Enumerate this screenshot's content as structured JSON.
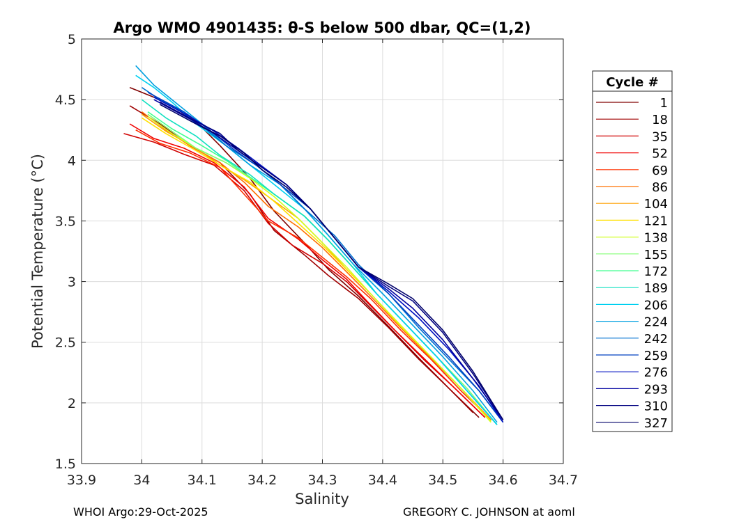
{
  "chart_data": {
    "type": "line",
    "title": "Argo WMO 4901435: θ-S below 500 dbar,  QC=(1,2)",
    "xlabel": "Salinity",
    "ylabel": "Potential Temperature (°C)",
    "xlim": [
      33.9,
      34.7
    ],
    "ylim": [
      1.5,
      5
    ],
    "xticks": [
      "33.9",
      "34",
      "34.1",
      "34.2",
      "34.3",
      "34.4",
      "34.5",
      "34.6",
      "34.7"
    ],
    "yticks": [
      "1.5",
      "2",
      "2.5",
      "3",
      "3.5",
      "4",
      "4.5",
      "5"
    ],
    "grid": true,
    "legend_title": "Cycle #",
    "legend_position": "right",
    "series": [
      {
        "name": "1",
        "color": "#800000",
        "x": [
          33.98,
          34.04,
          34.09,
          34.13,
          34.18,
          34.22,
          34.27,
          34.31,
          34.36,
          34.41,
          34.46,
          34.51,
          34.56
        ],
        "y": [
          4.6,
          4.48,
          4.32,
          4.12,
          3.85,
          3.58,
          3.32,
          3.1,
          2.88,
          2.63,
          2.37,
          2.12,
          1.88
        ]
      },
      {
        "name": "18",
        "color": "#a00000",
        "x": [
          33.98,
          34.03,
          34.08,
          34.13,
          34.18,
          34.22,
          34.27,
          34.31,
          34.36,
          34.41,
          34.46,
          34.51,
          34.55
        ],
        "y": [
          4.45,
          4.3,
          4.12,
          3.98,
          3.72,
          3.42,
          3.22,
          3.05,
          2.86,
          2.62,
          2.36,
          2.12,
          1.92
        ]
      },
      {
        "name": "35",
        "color": "#d00000",
        "x": [
          33.97,
          34.02,
          34.07,
          34.12,
          34.17,
          34.21,
          34.25,
          34.3,
          34.34,
          34.37,
          34.42,
          34.47,
          34.52,
          34.57
        ],
        "y": [
          4.22,
          4.15,
          4.05,
          3.96,
          3.75,
          3.48,
          3.3,
          3.15,
          3.0,
          2.85,
          2.6,
          2.35,
          2.12,
          1.88
        ]
      },
      {
        "name": "52",
        "color": "#f00000",
        "x": [
          33.98,
          34.02,
          34.07,
          34.12,
          34.17,
          34.21,
          34.26,
          34.3,
          34.34,
          34.37,
          34.42,
          34.47,
          34.52,
          34.57
        ],
        "y": [
          4.3,
          4.18,
          4.1,
          3.98,
          3.78,
          3.52,
          3.35,
          3.18,
          3.02,
          2.86,
          2.6,
          2.36,
          2.12,
          1.88
        ]
      },
      {
        "name": "69",
        "color": "#ff3000",
        "x": [
          33.99,
          34.03,
          34.08,
          34.13,
          34.17,
          34.21,
          34.26,
          34.3,
          34.34,
          34.38,
          34.43,
          34.48,
          34.53,
          34.58
        ],
        "y": [
          4.25,
          4.14,
          4.06,
          3.94,
          3.72,
          3.5,
          3.36,
          3.2,
          3.04,
          2.86,
          2.6,
          2.36,
          2.1,
          1.86
        ]
      },
      {
        "name": "86",
        "color": "#ff7000",
        "x": [
          34.0,
          34.04,
          34.08,
          34.13,
          34.17,
          34.21,
          34.26,
          34.3,
          34.34,
          34.38,
          34.43,
          34.48,
          34.53,
          34.58
        ],
        "y": [
          4.4,
          4.25,
          4.12,
          3.98,
          3.82,
          3.62,
          3.45,
          3.28,
          3.08,
          2.88,
          2.62,
          2.37,
          2.12,
          1.86
        ]
      },
      {
        "name": "104",
        "color": "#ffa000",
        "x": [
          34.0,
          34.04,
          34.09,
          34.13,
          34.17,
          34.21,
          34.26,
          34.3,
          34.34,
          34.38,
          34.43,
          34.48,
          34.53,
          34.58
        ],
        "y": [
          4.38,
          4.24,
          4.1,
          3.96,
          3.84,
          3.7,
          3.52,
          3.32,
          3.1,
          2.9,
          2.63,
          2.38,
          2.12,
          1.85
        ]
      },
      {
        "name": "121",
        "color": "#ffe000",
        "x": [
          34.0,
          34.04,
          34.09,
          34.13,
          34.18,
          34.22,
          34.26,
          34.3,
          34.34,
          34.38,
          34.43,
          34.48,
          34.53,
          34.58
        ],
        "y": [
          4.35,
          4.22,
          4.08,
          3.96,
          3.82,
          3.66,
          3.48,
          3.3,
          3.1,
          2.9,
          2.63,
          2.38,
          2.12,
          1.85
        ]
      },
      {
        "name": "138",
        "color": "#d0ff20",
        "x": [
          34.01,
          34.05,
          34.09,
          34.14,
          34.18,
          34.22,
          34.26,
          34.3,
          34.34,
          34.38,
          34.43,
          34.48,
          34.53,
          34.58
        ],
        "y": [
          4.36,
          4.22,
          4.1,
          3.98,
          3.85,
          3.7,
          3.52,
          3.32,
          3.12,
          2.9,
          2.64,
          2.38,
          2.12,
          1.84
        ]
      },
      {
        "name": "155",
        "color": "#80ff70",
        "x": [
          34.01,
          34.05,
          34.09,
          34.14,
          34.18,
          34.22,
          34.27,
          34.31,
          34.35,
          34.39,
          34.44,
          34.49,
          34.54,
          34.59
        ],
        "y": [
          4.38,
          4.24,
          4.1,
          3.98,
          3.86,
          3.72,
          3.54,
          3.34,
          3.12,
          2.9,
          2.64,
          2.38,
          2.12,
          1.82
        ]
      },
      {
        "name": "172",
        "color": "#40ff90",
        "x": [
          34.01,
          34.05,
          34.1,
          34.14,
          34.18,
          34.22,
          34.27,
          34.31,
          34.35,
          34.39,
          34.44,
          34.49,
          34.54,
          34.59
        ],
        "y": [
          4.4,
          4.26,
          4.12,
          4.0,
          3.86,
          3.72,
          3.54,
          3.34,
          3.12,
          2.9,
          2.64,
          2.38,
          2.1,
          1.82
        ]
      },
      {
        "name": "189",
        "color": "#10e0c0",
        "x": [
          34.0,
          34.04,
          34.09,
          34.13,
          34.18,
          34.22,
          34.27,
          34.31,
          34.35,
          34.39,
          34.44,
          34.49,
          34.54,
          34.59
        ],
        "y": [
          4.5,
          4.35,
          4.2,
          4.04,
          3.88,
          3.72,
          3.54,
          3.34,
          3.12,
          2.9,
          2.64,
          2.38,
          2.1,
          1.82
        ]
      },
      {
        "name": "206",
        "color": "#00d0f0",
        "x": [
          33.99,
          34.02,
          34.05,
          34.09,
          34.14,
          34.18,
          34.22,
          34.27,
          34.31,
          34.35,
          34.39,
          34.44,
          34.49,
          34.54,
          34.59
        ],
        "y": [
          4.7,
          4.6,
          4.48,
          4.3,
          4.12,
          3.96,
          3.8,
          3.6,
          3.38,
          3.15,
          2.9,
          2.64,
          2.38,
          2.1,
          1.82
        ]
      },
      {
        "name": "224",
        "color": "#00a0e0",
        "x": [
          33.99,
          34.02,
          34.06,
          34.1,
          34.14,
          34.18,
          34.23,
          34.27,
          34.31,
          34.35,
          34.4,
          34.45,
          34.5,
          34.55,
          34.59
        ],
        "y": [
          4.78,
          4.62,
          4.46,
          4.3,
          4.12,
          3.96,
          3.8,
          3.6,
          3.38,
          3.15,
          2.9,
          2.64,
          2.38,
          2.1,
          1.84
        ]
      },
      {
        "name": "242",
        "color": "#0070d0",
        "x": [
          34.0,
          34.03,
          34.06,
          34.1,
          34.14,
          34.19,
          34.23,
          34.27,
          34.32,
          34.36,
          34.41,
          34.46,
          34.51,
          34.56,
          34.6
        ],
        "y": [
          4.6,
          4.5,
          4.42,
          4.28,
          4.12,
          3.96,
          3.8,
          3.6,
          3.38,
          3.14,
          2.9,
          2.62,
          2.36,
          2.1,
          1.84
        ]
      },
      {
        "name": "259",
        "color": "#0040c0",
        "x": [
          34.01,
          34.04,
          34.07,
          34.11,
          34.15,
          34.19,
          34.23,
          34.28,
          34.32,
          34.36,
          34.41,
          34.46,
          34.51,
          34.56,
          34.6
        ],
        "y": [
          4.56,
          4.48,
          4.4,
          4.26,
          4.1,
          3.96,
          3.8,
          3.6,
          3.36,
          3.12,
          2.9,
          2.64,
          2.38,
          2.1,
          1.84
        ]
      },
      {
        "name": "276",
        "color": "#0010c0",
        "x": [
          34.02,
          34.05,
          34.08,
          34.12,
          34.16,
          34.2,
          34.24,
          34.28,
          34.32,
          34.36,
          34.41,
          34.46,
          34.51,
          34.56,
          34.6
        ],
        "y": [
          4.52,
          4.44,
          4.36,
          4.24,
          4.1,
          3.95,
          3.8,
          3.6,
          3.36,
          3.12,
          2.92,
          2.7,
          2.44,
          2.14,
          1.84
        ]
      },
      {
        "name": "293",
        "color": "#0000a0",
        "x": [
          34.02,
          34.05,
          34.08,
          34.12,
          34.16,
          34.2,
          34.24,
          34.28,
          34.32,
          34.36,
          34.41,
          34.45,
          34.5,
          34.55,
          34.6
        ],
        "y": [
          4.5,
          4.42,
          4.34,
          4.22,
          4.08,
          3.94,
          3.8,
          3.6,
          3.36,
          3.12,
          2.94,
          2.78,
          2.52,
          2.2,
          1.86
        ]
      },
      {
        "name": "310",
        "color": "#000080",
        "x": [
          34.03,
          34.06,
          34.09,
          34.13,
          34.16,
          34.2,
          34.24,
          34.28,
          34.32,
          34.36,
          34.41,
          34.45,
          34.5,
          34.55,
          34.6
        ],
        "y": [
          4.48,
          4.4,
          4.32,
          4.22,
          4.08,
          3.94,
          3.8,
          3.6,
          3.36,
          3.12,
          2.96,
          2.84,
          2.58,
          2.24,
          1.86
        ]
      },
      {
        "name": "327",
        "color": "#00006a",
        "x": [
          34.03,
          34.06,
          34.09,
          34.13,
          34.17,
          34.2,
          34.24,
          34.28,
          34.32,
          34.36,
          34.41,
          34.45,
          34.5,
          34.55,
          34.6
        ],
        "y": [
          4.46,
          4.38,
          4.3,
          4.2,
          4.06,
          3.92,
          3.78,
          3.6,
          3.36,
          3.12,
          2.98,
          2.86,
          2.6,
          2.26,
          1.86
        ]
      }
    ]
  },
  "footer": {
    "left": "WHOI Argo:29-Oct-2025",
    "right": "GREGORY C. JOHNSON at aoml"
  }
}
